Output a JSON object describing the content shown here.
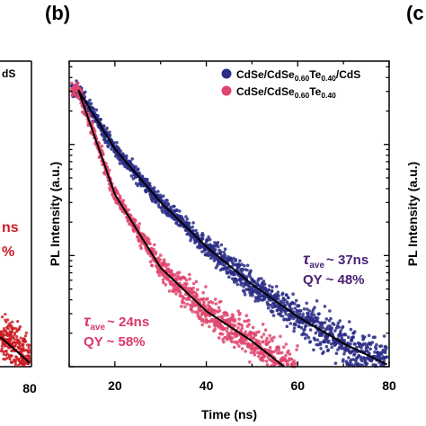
{
  "panel_b_label": "(b)",
  "panel_c_label": "(c",
  "left_panel": {
    "legend_fragment": "dS",
    "annot_fragment_1": "ns",
    "annot_fragment_2": "%",
    "x_tick": "80",
    "color": "#cc1b22"
  },
  "right_panel": {
    "ylabel": "PL Intensity (a.u.)"
  },
  "chart_data": {
    "type": "scatter",
    "panel": "(b)",
    "xlabel": "Time (ns)",
    "ylabel": "PL Intensity (a.u.)",
    "xlim": [
      10,
      80
    ],
    "x_ticks": [
      "20",
      "40",
      "60",
      "80"
    ],
    "y_scale": "log",
    "ylim_decades": [
      0,
      2.75
    ],
    "grid": false,
    "legend_position": "top-right",
    "series": [
      {
        "name_main": "CdSe/CdSe",
        "name_sub1": "0.60",
        "name_mid": "Te",
        "name_sub2": "0.40",
        "name_tail": "/CdS",
        "color": "#2a2d86",
        "t_start": 10.5,
        "t_end": 79.5,
        "t_end_fit": 79.5,
        "fit_points": [
          [
            12,
            2.49
          ],
          [
            20,
            1.96
          ],
          [
            30,
            1.48
          ],
          [
            40,
            1.08
          ],
          [
            50,
            0.74
          ],
          [
            60,
            0.45
          ],
          [
            70,
            0.21
          ],
          [
            79.5,
            0.02
          ]
        ],
        "tau_label": "τ",
        "tau_sub": "ave",
        "tau_value": "~ 37ns",
        "qy_label": "QY  ~ 48%",
        "annot_color": "#4a2173"
      },
      {
        "name_main": "CdSe/CdSe",
        "name_sub1": "0.60",
        "name_mid": "Te",
        "name_sub2": "0.40",
        "name_tail": "",
        "color": "#e0456f",
        "t_start": 10.5,
        "t_end": 60,
        "t_end_fit": 57,
        "fit_points": [
          [
            12,
            2.49
          ],
          [
            20,
            1.55
          ],
          [
            30,
            0.89
          ],
          [
            40,
            0.5
          ],
          [
            50,
            0.23
          ],
          [
            57,
            0.0
          ]
        ],
        "tau_label": "τ",
        "tau_sub": "ave",
        "tau_value": "~ 24ns",
        "qy_label": "QY  ~ 58%",
        "annot_color": "#d93a68"
      }
    ]
  }
}
